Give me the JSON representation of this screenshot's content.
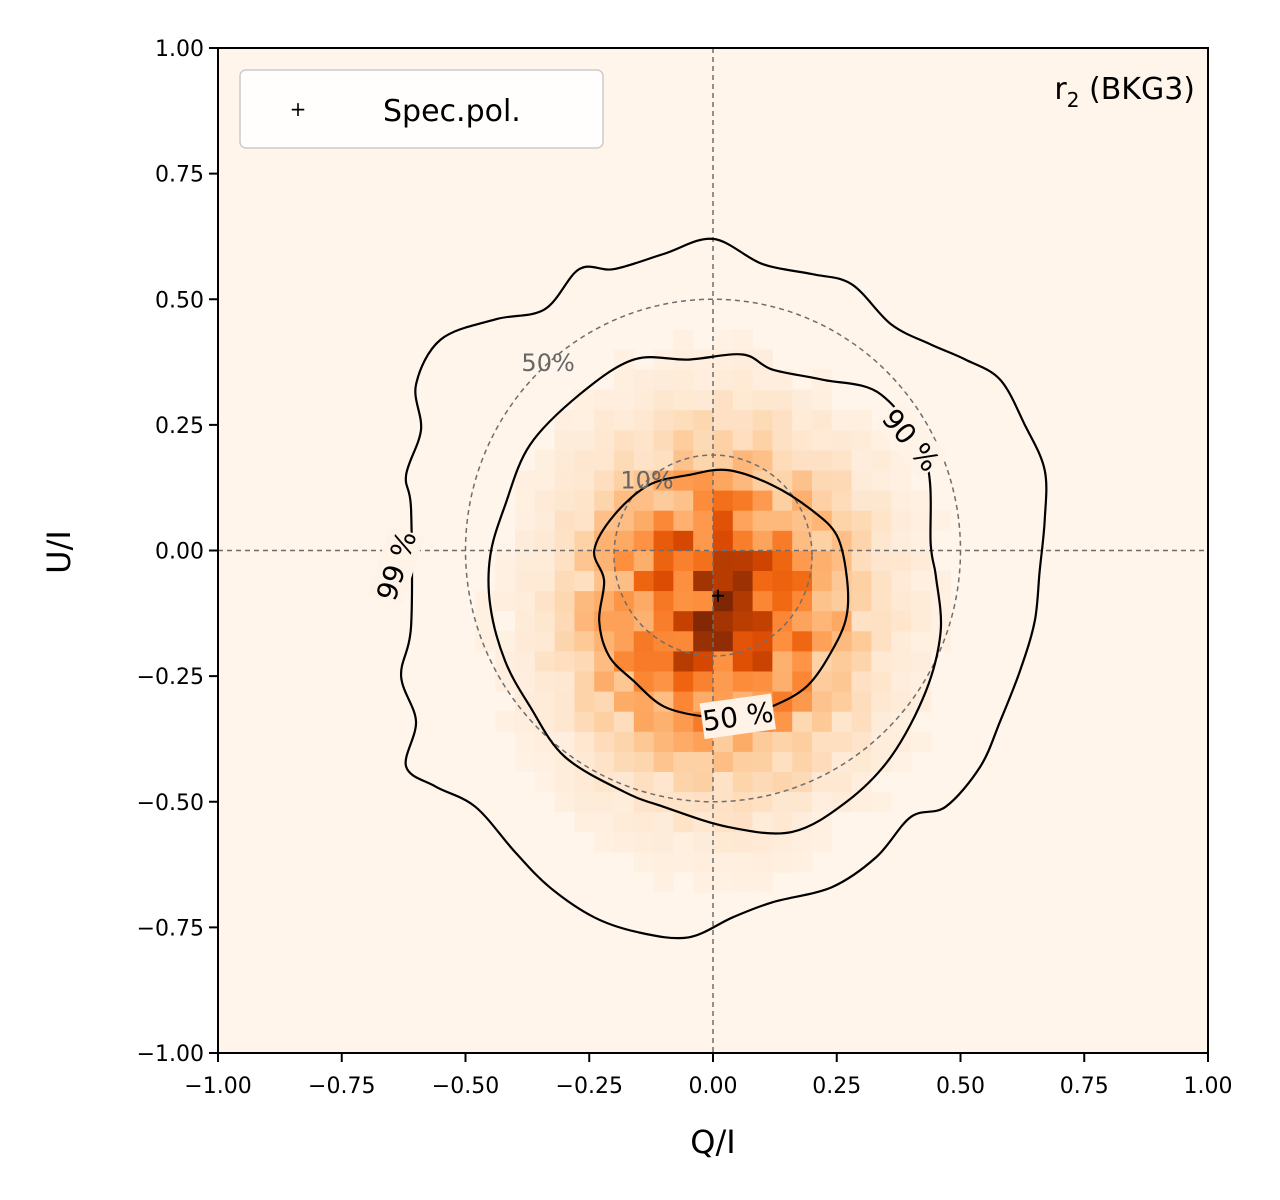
{
  "chart_data": {
    "type": "heatmap",
    "title": "",
    "xlabel": "Q/I",
    "ylabel": "U/I",
    "xlim": [
      -1.0,
      1.0
    ],
    "ylim": [
      -1.0,
      1.0
    ],
    "xticks": [
      -1.0,
      -0.75,
      -0.5,
      -0.25,
      0.0,
      0.25,
      0.5,
      0.75,
      1.0
    ],
    "yticks": [
      -1.0,
      -0.75,
      -0.5,
      -0.25,
      0.0,
      0.25,
      0.5,
      0.75,
      1.0
    ],
    "xtick_labels": [
      "−1.00",
      "−0.75",
      "−0.50",
      "−0.25",
      "0.00",
      "0.25",
      "0.50",
      "0.75",
      "1.00"
    ],
    "ytick_labels": [
      "−1.00",
      "−0.75",
      "−0.50",
      "−0.25",
      "0.00",
      "0.25",
      "0.50",
      "0.75",
      "1.00"
    ],
    "annotation": {
      "main": "r",
      "sub": "2",
      "rest": " (BKG3)",
      "position": "top-right"
    },
    "legend": {
      "position": "top-left",
      "entries": [
        {
          "marker": "+",
          "label": "Spec.pol."
        }
      ]
    },
    "colormap": "Oranges",
    "density": {
      "center": [
        0.01,
        -0.12
      ],
      "sigma": [
        0.17,
        0.2
      ],
      "bin_size": 0.04
    },
    "reference_lines": {
      "x": 0.0,
      "y": 0.0,
      "style": "dashed",
      "color": "#6e6e6e"
    },
    "reference_circles": [
      {
        "radius": 0.2,
        "center": [
          0.0,
          -0.01
        ],
        "label": "10%"
      },
      {
        "radius": 0.5,
        "center": [
          0.0,
          0.0
        ],
        "label": "50%"
      }
    ],
    "contours": [
      {
        "level": "50 %",
        "label_text": "50 %",
        "points": [
          [
            -0.02,
            -0.33
          ],
          [
            -0.1,
            -0.31
          ],
          [
            -0.16,
            -0.26
          ],
          [
            -0.21,
            -0.21
          ],
          [
            -0.23,
            -0.14
          ],
          [
            -0.22,
            -0.06
          ],
          [
            -0.24,
            0.0
          ],
          [
            -0.2,
            0.07
          ],
          [
            -0.13,
            0.13
          ],
          [
            -0.05,
            0.15
          ],
          [
            0.03,
            0.16
          ],
          [
            0.12,
            0.13
          ],
          [
            0.2,
            0.08
          ],
          [
            0.25,
            0.03
          ],
          [
            0.27,
            -0.05
          ],
          [
            0.27,
            -0.13
          ],
          [
            0.24,
            -0.2
          ],
          [
            0.19,
            -0.27
          ],
          [
            0.12,
            -0.31
          ],
          [
            0.05,
            -0.33
          ]
        ]
      },
      {
        "level": "90 %",
        "label_text": "90 %",
        "points": [
          [
            0.43,
            0.18
          ],
          [
            0.34,
            0.31
          ],
          [
            0.22,
            0.34
          ],
          [
            0.12,
            0.36
          ],
          [
            0.06,
            0.39
          ],
          [
            -0.05,
            0.38
          ],
          [
            -0.16,
            0.38
          ],
          [
            -0.27,
            0.31
          ],
          [
            -0.37,
            0.21
          ],
          [
            -0.42,
            0.09
          ],
          [
            -0.45,
            -0.01
          ],
          [
            -0.45,
            -0.11
          ],
          [
            -0.42,
            -0.22
          ],
          [
            -0.37,
            -0.31
          ],
          [
            -0.3,
            -0.41
          ],
          [
            -0.18,
            -0.48
          ],
          [
            -0.1,
            -0.51
          ],
          [
            0.03,
            -0.55
          ],
          [
            0.16,
            -0.56
          ],
          [
            0.27,
            -0.5
          ],
          [
            0.36,
            -0.41
          ],
          [
            0.43,
            -0.28
          ],
          [
            0.46,
            -0.16
          ],
          [
            0.45,
            -0.05
          ],
          [
            0.44,
            0.01
          ]
        ]
      },
      {
        "level": "99 %",
        "label_text": "99 %",
        "points": [
          [
            -0.61,
            -0.15
          ],
          [
            -0.63,
            -0.25
          ],
          [
            -0.6,
            -0.34
          ],
          [
            -0.62,
            -0.43
          ],
          [
            -0.56,
            -0.47
          ],
          [
            -0.48,
            -0.51
          ],
          [
            -0.4,
            -0.6
          ],
          [
            -0.33,
            -0.67
          ],
          [
            -0.24,
            -0.73
          ],
          [
            -0.15,
            -0.76
          ],
          [
            -0.05,
            -0.77
          ],
          [
            0.04,
            -0.73
          ],
          [
            0.12,
            -0.7
          ],
          [
            0.24,
            -0.67
          ],
          [
            0.33,
            -0.61
          ],
          [
            0.4,
            -0.53
          ],
          [
            0.47,
            -0.51
          ],
          [
            0.54,
            -0.43
          ],
          [
            0.58,
            -0.34
          ],
          [
            0.62,
            -0.24
          ],
          [
            0.65,
            -0.14
          ],
          [
            0.66,
            -0.04
          ],
          [
            0.67,
            0.06
          ],
          [
            0.67,
            0.16
          ],
          [
            0.63,
            0.25
          ],
          [
            0.58,
            0.34
          ],
          [
            0.51,
            0.38
          ],
          [
            0.44,
            0.41
          ],
          [
            0.36,
            0.45
          ],
          [
            0.28,
            0.53
          ],
          [
            0.2,
            0.55
          ],
          [
            0.1,
            0.57
          ],
          [
            0.0,
            0.62
          ],
          [
            -0.1,
            0.59
          ],
          [
            -0.2,
            0.56
          ],
          [
            -0.27,
            0.56
          ],
          [
            -0.34,
            0.48
          ],
          [
            -0.44,
            0.46
          ],
          [
            -0.55,
            0.42
          ],
          [
            -0.6,
            0.33
          ],
          [
            -0.59,
            0.24
          ],
          [
            -0.62,
            0.15
          ],
          [
            -0.61,
            0.08
          ]
        ]
      }
    ],
    "contour_label_positions": [
      {
        "text": "50 %",
        "x": 0.05,
        "y": -0.33,
        "angle": -8
      },
      {
        "text": "90 %",
        "x": 0.4,
        "y": 0.22,
        "angle": 50
      },
      {
        "text": "99 %",
        "x": -0.64,
        "y": -0.03,
        "angle": -72
      }
    ],
    "points": [
      {
        "label": "Spec.pol.",
        "x": 0.01,
        "y": -0.09,
        "marker": "+"
      }
    ]
  }
}
